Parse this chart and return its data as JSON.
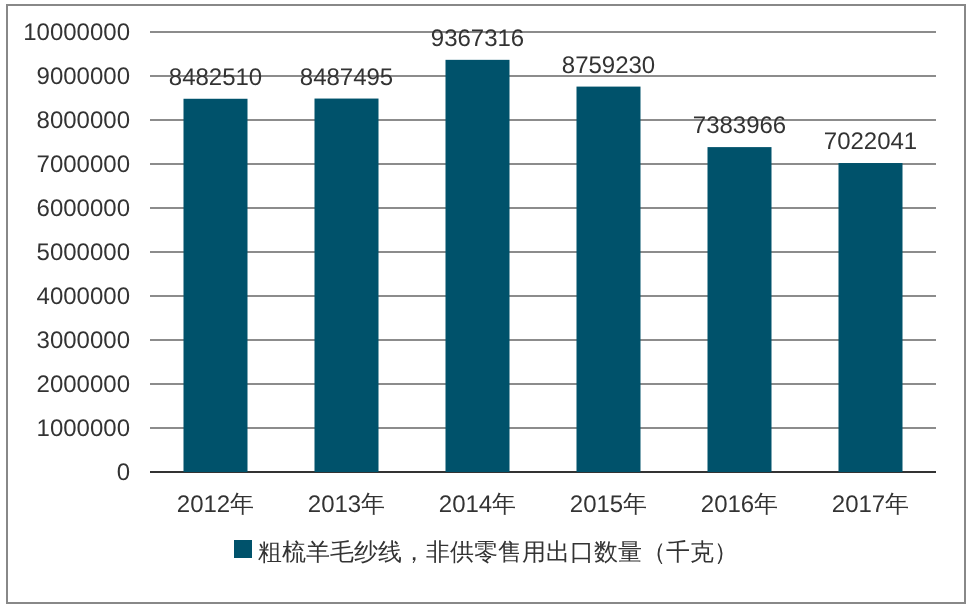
{
  "chart_data": {
    "type": "bar",
    "categories": [
      "2012年",
      "2013年",
      "2014年",
      "2015年",
      "2016年",
      "2017年"
    ],
    "series": [
      {
        "name": "粗梳羊毛纱线，非供零售用出口数量（千克）",
        "color": "#00526b",
        "values": [
          8482510,
          8487495,
          9367316,
          8759230,
          7383966,
          7022041
        ]
      }
    ],
    "ylim": [
      0,
      10000000
    ],
    "yticks": [
      0,
      1000000,
      2000000,
      3000000,
      4000000,
      5000000,
      6000000,
      7000000,
      8000000,
      9000000,
      10000000
    ],
    "grid": "y",
    "legend": "bottom",
    "data_labels": true
  }
}
